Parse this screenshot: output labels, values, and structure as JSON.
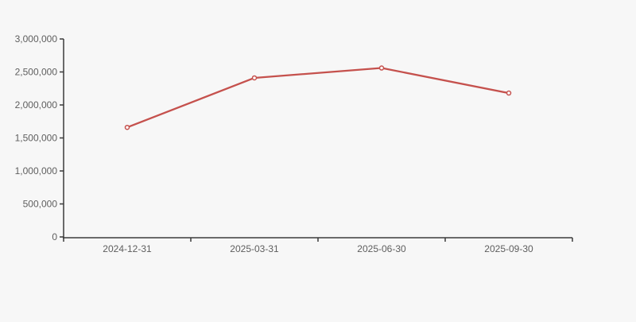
{
  "page": {
    "background_color": "#f7f7f7"
  },
  "chart_data": {
    "type": "line",
    "title": "",
    "xlabel": "",
    "ylabel": "",
    "categories": [
      "2024-12-31",
      "2025-03-31",
      "2025-06-30",
      "2025-09-30"
    ],
    "values": [
      1660000,
      2410000,
      2560000,
      2180000
    ],
    "ylim": [
      0,
      3000000
    ],
    "y_tick_step": 500000,
    "y_tick_labels": [
      "0",
      "500,000",
      "1,000,000",
      "1,500,000",
      "2,000,000",
      "2,500,000",
      "3,000,000"
    ],
    "grid": false,
    "legend": false,
    "line_color": "#c5514d",
    "marker_fill": "#ffffff",
    "marker_stroke": "#c5514d",
    "axis_color": "#3b3b3b",
    "label_color": "#5e5e5e"
  }
}
